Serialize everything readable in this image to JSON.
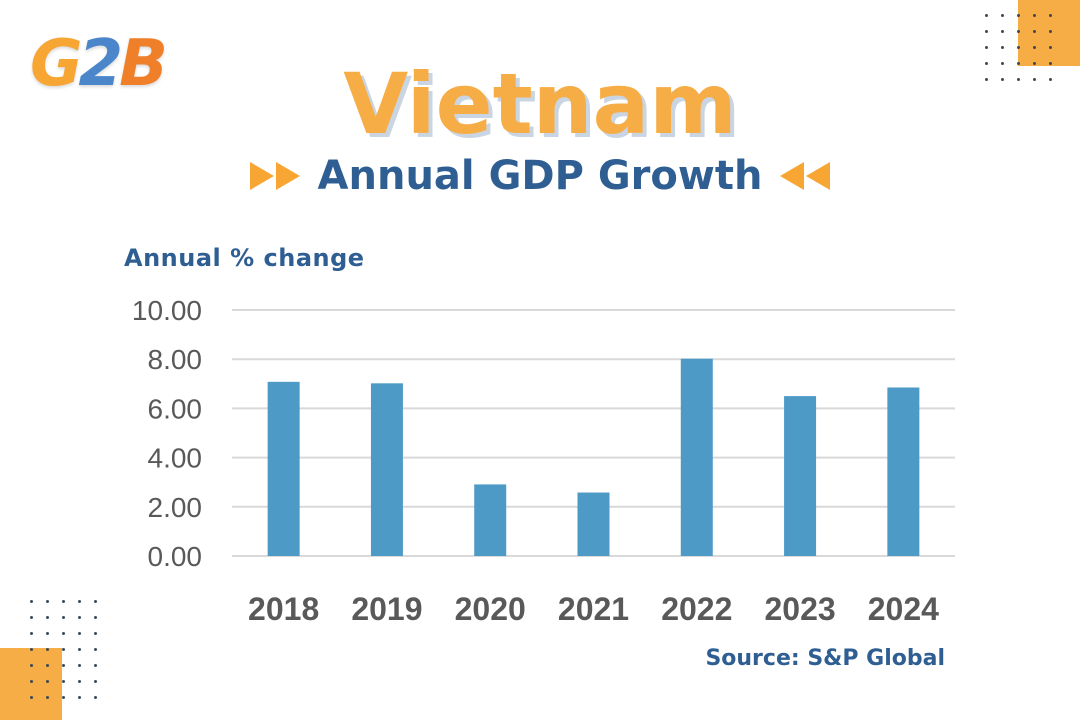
{
  "logo": {
    "part1": "G",
    "part2": "2",
    "part3": "B"
  },
  "title": "Vietnam",
  "subtitle": "Annual GDP Growth",
  "source": "Source: S&P Global",
  "colors": {
    "bar": "#4e9ac7",
    "accent": "#f7ad45",
    "heading": "#2f5f92",
    "grid": "#d9d9d9",
    "tick": "#595959"
  },
  "chart_data": {
    "type": "bar",
    "title": "",
    "ylabel": "Annual % change",
    "xlabel": "",
    "categories": [
      "2018",
      "2019",
      "2020",
      "2021",
      "2022",
      "2023",
      "2024"
    ],
    "values": [
      7.08,
      7.02,
      2.91,
      2.58,
      8.02,
      6.5,
      6.85
    ],
    "ylim": [
      0,
      10
    ],
    "yticks": [
      "0.00",
      "2.00",
      "4.00",
      "6.00",
      "8.00",
      "10.00"
    ],
    "ytick_values": [
      0,
      2,
      4,
      6,
      8,
      10
    ],
    "grid": true,
    "legend": "none"
  }
}
